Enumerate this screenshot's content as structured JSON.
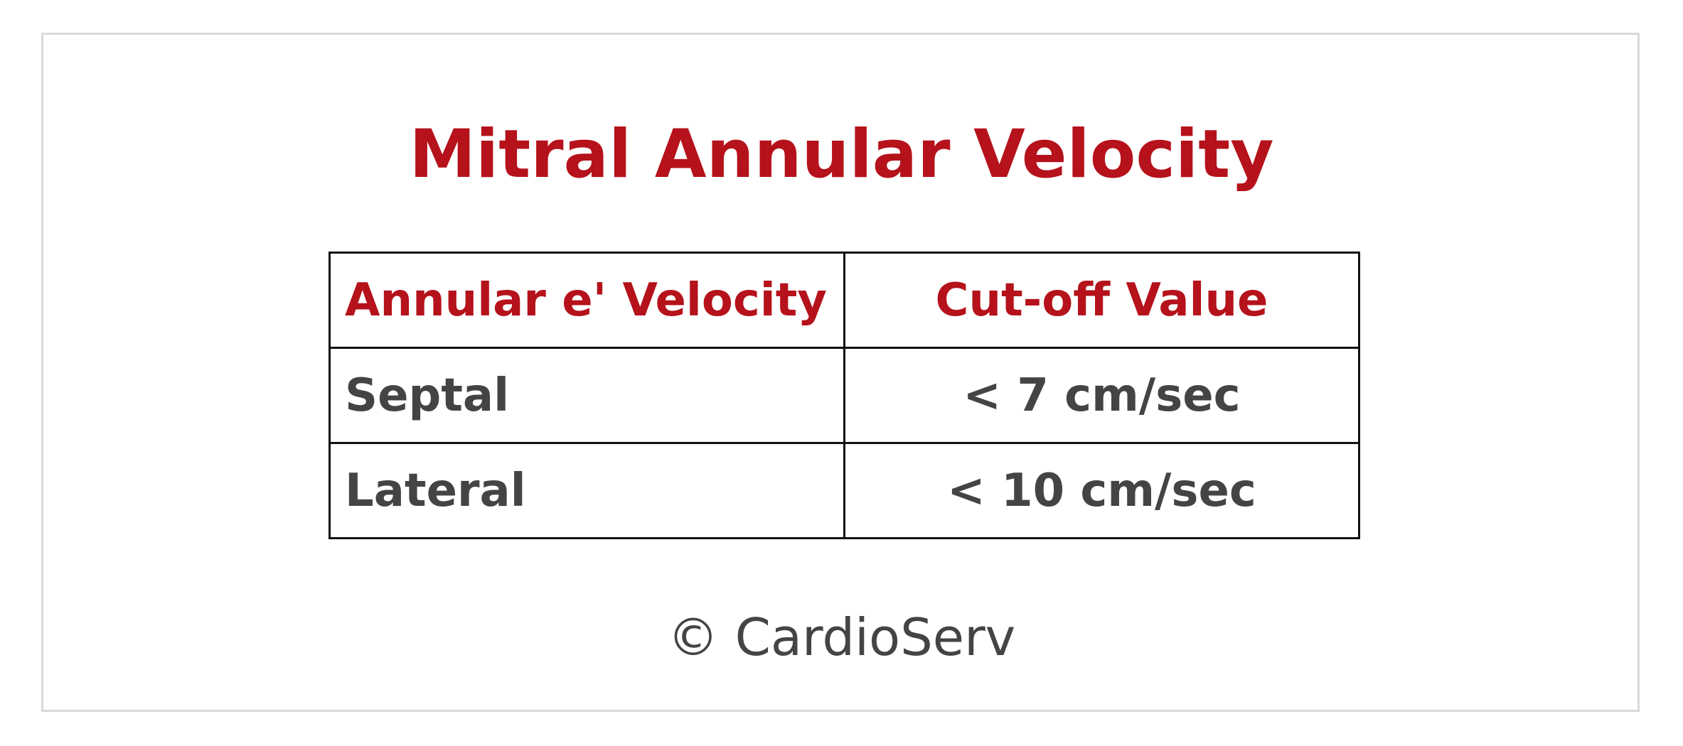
{
  "title": "Mitral Annular Velocity",
  "table": {
    "headers": [
      "Annular e' Velocity",
      "Cut-off Value"
    ],
    "rows": [
      [
        "Septal",
        "< 7 cm/sec"
      ],
      [
        "Lateral",
        "< 10 cm/sec"
      ]
    ]
  },
  "copyright": "© CardioServ",
  "colors": {
    "accent": "#b5121b",
    "text": "#444444",
    "border": "#111111",
    "frame": "#d9d9d9"
  }
}
